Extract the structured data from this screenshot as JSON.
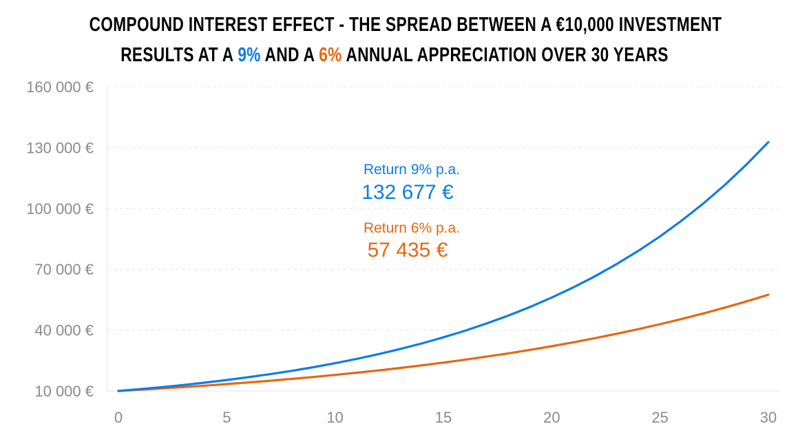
{
  "chart_data": {
    "type": "line",
    "title_parts": {
      "line1": "COMPOUND INTEREST EFFECT - THE SPREAD BETWEEN A €10,000 INVESTMENT",
      "line2_a": "RESULTS AT A ",
      "line2_b": "9%",
      "line2_c": " AND A ",
      "line2_d": "6%",
      "line2_e": " ANNUAL APPRECIATION OVER 30 YEARS"
    },
    "xlim": [
      0,
      30
    ],
    "ylim": [
      10000,
      160000
    ],
    "x_ticks": [
      0,
      5,
      10,
      15,
      20,
      25,
      30
    ],
    "y_ticks": [
      10000,
      40000,
      70000,
      100000,
      130000,
      160000
    ],
    "y_tick_labels": [
      "10 000 €",
      "40 000 €",
      "70 000 €",
      "100 000 €",
      "130 000 €",
      "160 000 €"
    ],
    "grid": "horizontal dashed",
    "x": [
      0,
      1,
      2,
      3,
      4,
      5,
      6,
      7,
      8,
      9,
      10,
      11,
      12,
      13,
      14,
      15,
      16,
      17,
      18,
      19,
      20,
      21,
      22,
      23,
      24,
      25,
      26,
      27,
      28,
      29,
      30
    ],
    "series": [
      {
        "name": "Return 9% p.a.",
        "color": "#0a7de6",
        "values": [
          10000,
          10900,
          11881,
          12950,
          14116,
          15386,
          16771,
          18280,
          19926,
          21719,
          23674,
          25804,
          28127,
          30658,
          33417,
          36425,
          39703,
          43276,
          47171,
          51417,
          56044,
          61088,
          66586,
          72579,
          79111,
          86231,
          93992,
          102451,
          111671,
          121722,
          132677
        ]
      },
      {
        "name": "Return 6% p.a.",
        "color": "#e8650f",
        "values": [
          10000,
          10600,
          11236,
          11910,
          12625,
          13382,
          14185,
          15036,
          15938,
          16895,
          17908,
          18983,
          20122,
          21329,
          22609,
          23966,
          25404,
          26928,
          28543,
          30256,
          32071,
          33996,
          36035,
          38197,
          40489,
          42919,
          45494,
          48223,
          51117,
          54184,
          57435
        ]
      }
    ],
    "annotations": [
      {
        "label": "Return 9% p.a.",
        "value": "132 677 €",
        "color": "#0a7de6"
      },
      {
        "label": "Return 6% p.a.",
        "value": "57 435 €",
        "color": "#e8650f"
      }
    ]
  }
}
